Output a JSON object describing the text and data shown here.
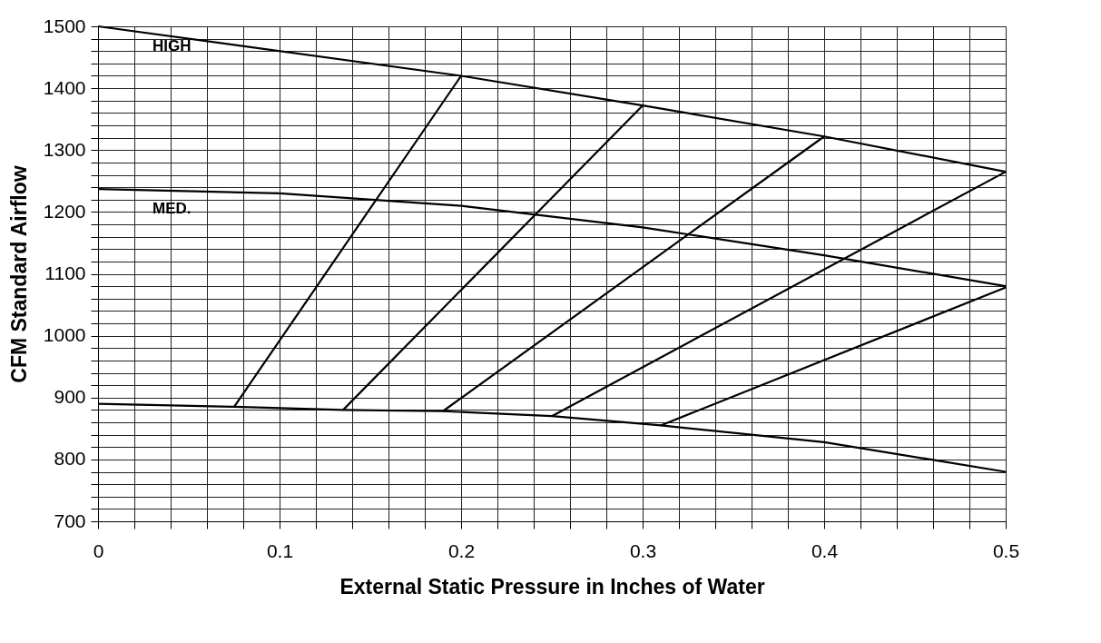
{
  "chart_data": {
    "type": "line",
    "xlabel": "External Static Pressure in Inches of Water",
    "ylabel": "CFM Standard Airflow",
    "xlim": [
      0,
      0.5
    ],
    "ylim": [
      700,
      1500
    ],
    "xticks": [
      0,
      {
        "value": 0.02,
        "label": null
      },
      {
        "value": 0.04,
        "label": null
      },
      {
        "value": 0.06,
        "label": null
      },
      {
        "value": 0.08,
        "label": null
      },
      0.1,
      {
        "value": 0.12,
        "label": null
      },
      {
        "value": 0.14,
        "label": null
      },
      {
        "value": 0.16,
        "label": null
      },
      {
        "value": 0.18,
        "label": null
      },
      0.2,
      {
        "value": 0.22,
        "label": null
      },
      {
        "value": 0.24,
        "label": null
      },
      {
        "value": 0.26,
        "label": null
      },
      {
        "value": 0.28,
        "label": null
      },
      0.3,
      {
        "value": 0.32,
        "label": null
      },
      {
        "value": 0.34,
        "label": null
      },
      {
        "value": 0.36,
        "label": null
      },
      {
        "value": 0.38,
        "label": null
      },
      0.4,
      {
        "value": 0.42,
        "label": null
      },
      {
        "value": 0.44,
        "label": null
      },
      {
        "value": 0.46,
        "label": null
      },
      {
        "value": 0.48,
        "label": null
      },
      0.5
    ],
    "yticks": [
      700,
      {
        "value": 720,
        "label": null
      },
      {
        "value": 740,
        "label": null
      },
      {
        "value": 760,
        "label": null
      },
      {
        "value": 780,
        "label": null
      },
      800,
      {
        "value": 820,
        "label": null
      },
      {
        "value": 840,
        "label": null
      },
      {
        "value": 860,
        "label": null
      },
      {
        "value": 880,
        "label": null
      },
      900,
      {
        "value": 920,
        "label": null
      },
      {
        "value": 940,
        "label": null
      },
      {
        "value": 960,
        "label": null
      },
      {
        "value": 980,
        "label": null
      },
      1000,
      {
        "value": 1020,
        "label": null
      },
      {
        "value": 1040,
        "label": null
      },
      {
        "value": 1060,
        "label": null
      },
      {
        "value": 1080,
        "label": null
      },
      1100,
      {
        "value": 1120,
        "label": null
      },
      {
        "value": 1140,
        "label": null
      },
      {
        "value": 1160,
        "label": null
      },
      {
        "value": 1180,
        "label": null
      },
      1200,
      {
        "value": 1220,
        "label": null
      },
      {
        "value": 1240,
        "label": null
      },
      {
        "value": 1260,
        "label": null
      },
      {
        "value": 1280,
        "label": null
      },
      1300,
      {
        "value": 1320,
        "label": null
      },
      {
        "value": 1340,
        "label": null
      },
      {
        "value": 1360,
        "label": null
      },
      {
        "value": 1380,
        "label": null
      },
      1400,
      {
        "value": 1420,
        "label": null
      },
      {
        "value": 1440,
        "label": null
      },
      {
        "value": 1460,
        "label": null
      },
      {
        "value": 1480,
        "label": null
      },
      1500
    ],
    "grid": true,
    "legend": false,
    "marker": "none",
    "line_style": "solid",
    "series": [
      {
        "name": "HIGH",
        "color": "#000000",
        "x": [
          0,
          0.2,
          0.3,
          0.4,
          0.5
        ],
        "values": [
          1500,
          1420,
          1372,
          1322,
          1265
        ]
      },
      {
        "name": "MED.",
        "color": "#000000",
        "x": [
          0,
          0.1,
          0.2,
          0.3,
          0.4,
          0.5
        ],
        "values": [
          1237,
          1230,
          1210,
          1175,
          1130,
          1080
        ]
      },
      {
        "color": "#000000",
        "x": [
          0,
          0.075,
          0.135,
          0.19,
          0.25,
          0.31,
          0.4,
          0.5
        ],
        "values": [
          890,
          885,
          880,
          878,
          870,
          855,
          828,
          780
        ]
      },
      {
        "color": "#000000",
        "x": [
          0.075,
          0.2
        ],
        "values": [
          885,
          1420
        ]
      },
      {
        "color": "#000000",
        "x": [
          0.135,
          0.3
        ],
        "values": [
          880,
          1372
        ]
      },
      {
        "color": "#000000",
        "x": [
          0.19,
          0.4
        ],
        "values": [
          878,
          1322
        ]
      },
      {
        "color": "#000000",
        "x": [
          0.25,
          0.5
        ],
        "values": [
          870,
          1265
        ]
      },
      {
        "color": "#000000",
        "x": [
          0.31,
          0.5
        ],
        "values": [
          855,
          1078
        ]
      }
    ]
  }
}
